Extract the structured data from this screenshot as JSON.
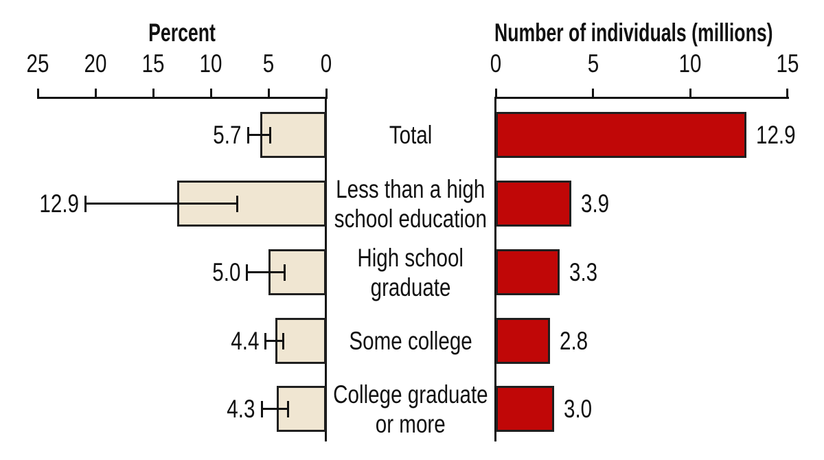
{
  "chart_data": {
    "type": "bar",
    "subtype": "back-to-back horizontal bar chart (population pyramid style)",
    "title_left": "Percent",
    "title_right": "Number of individuals (millions)",
    "categories": [
      "Total",
      "Less than a high school education",
      "High school graduate",
      "Some college",
      "College graduate or more"
    ],
    "category_lines": [
      [
        "Total"
      ],
      [
        "Less than a high",
        "school education"
      ],
      [
        "High school",
        "graduate"
      ],
      [
        "Some college"
      ],
      [
        "College graduate",
        "or more"
      ]
    ],
    "series": [
      {
        "name": "Percent",
        "values": [
          5.7,
          12.9,
          5.0,
          4.4,
          4.3
        ],
        "error_low": [
          4.8,
          7.7,
          3.6,
          3.7,
          3.3
        ],
        "error_high": [
          6.8,
          20.9,
          6.9,
          5.3,
          5.6
        ],
        "axis_range": [
          0,
          25
        ],
        "ticks": [
          25,
          20,
          15,
          10,
          5,
          0
        ],
        "direction": "leftward",
        "bar_color": "#F0E6D2",
        "has_error_bars": true
      },
      {
        "name": "Number of individuals (millions)",
        "values": [
          12.9,
          3.9,
          3.3,
          2.8,
          3.0
        ],
        "axis_range": [
          0,
          15
        ],
        "ticks": [
          0,
          5,
          10,
          15
        ],
        "direction": "rightward",
        "bar_color": "#C00707",
        "has_error_bars": false
      }
    ],
    "value_labels_left": [
      "5.7",
      "12.9",
      "5.0",
      "4.4",
      "4.3"
    ],
    "value_labels_right": [
      "12.9",
      "3.9",
      "3.3",
      "2.8",
      "3.0"
    ],
    "grid": false,
    "legend": "none",
    "colors": {
      "left_bar_fill": "#F0E6D2",
      "right_bar_fill": "#C00707",
      "bar_outline": "#1F1F1F",
      "axis_and_text": "#111111",
      "background": "#FFFFFF"
    }
  }
}
